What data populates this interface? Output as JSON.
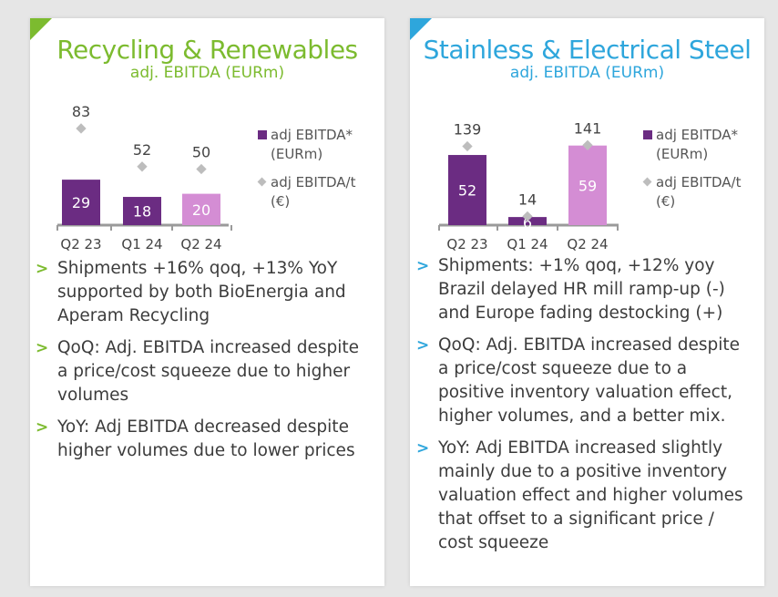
{
  "colors": {
    "green": "#7cbb2f",
    "blue": "#2ea6dc",
    "purple_dark": "#6b2c82",
    "purple_light": "#d48dd4",
    "marker_gray": "#bdbdbd"
  },
  "panels": [
    {
      "title": "Recycling & Renewables",
      "subtitle": "adj. EBITDA (EURm)",
      "legend": {
        "bar_label": [
          "adj EBITDA*",
          "(EURm)"
        ],
        "marker_label": [
          "adj EBITDA/t",
          "(€)"
        ]
      },
      "bullets": [
        [
          "Shipments +16% qoq, +13% YoY",
          "supported by both BioEnergia and",
          "Aperam Recycling"
        ],
        [
          "QoQ: Adj. EBITDA increased despite",
          "a price/cost squeeze due to higher",
          "volumes"
        ],
        [
          "YoY: Adj EBITDA decreased despite",
          "higher volumes due to lower prices"
        ]
      ]
    },
    {
      "title": "Stainless & Electrical Steel",
      "subtitle": "adj. EBITDA (EURm)",
      "legend": {
        "bar_label": [
          "adj EBITDA*",
          "(EURm)"
        ],
        "marker_label": [
          "adj EBITDA/t",
          "(€)"
        ]
      },
      "bullets": [
        [
          "Shipments: +1% qoq, +12% yoy",
          "Brazil delayed HR mill ramp-up (-)",
          "and Europe fading destocking (+)"
        ],
        [
          "QoQ: Adj. EBITDA increased despite",
          "a price/cost squeeze due to a",
          "positive inventory valuation effect,",
          "higher volumes, and a better mix."
        ],
        [
          "YoY: Adj EBITDA increased slightly",
          "mainly due to a positive inventory",
          "valuation effect and higher volumes",
          "that offset to a significant price /",
          "cost squeeze"
        ]
      ]
    }
  ],
  "chart_data": [
    {
      "type": "bar",
      "title": "Recycling & Renewables",
      "subtitle": "adj. EBITDA (EURm)",
      "categories": [
        "Q2 23",
        "Q1 24",
        "Q2 24"
      ],
      "series": [
        {
          "name": "adj EBITDA* (EURm)",
          "kind": "bar",
          "values": [
            29,
            18,
            20
          ]
        },
        {
          "name": "adj EBITDA/t (€)",
          "kind": "marker",
          "values": [
            83,
            52,
            50
          ]
        }
      ]
    },
    {
      "type": "bar",
      "title": "Stainless & Electrical Steel",
      "subtitle": "adj. EBITDA (EURm)",
      "categories": [
        "Q2 23",
        "Q1 24",
        "Q2 24"
      ],
      "series": [
        {
          "name": "adj EBITDA* (EURm)",
          "kind": "bar",
          "values": [
            52,
            6,
            59
          ]
        },
        {
          "name": "adj EBITDA/t (€)",
          "kind": "marker",
          "values": [
            139,
            14,
            141
          ]
        }
      ]
    }
  ]
}
